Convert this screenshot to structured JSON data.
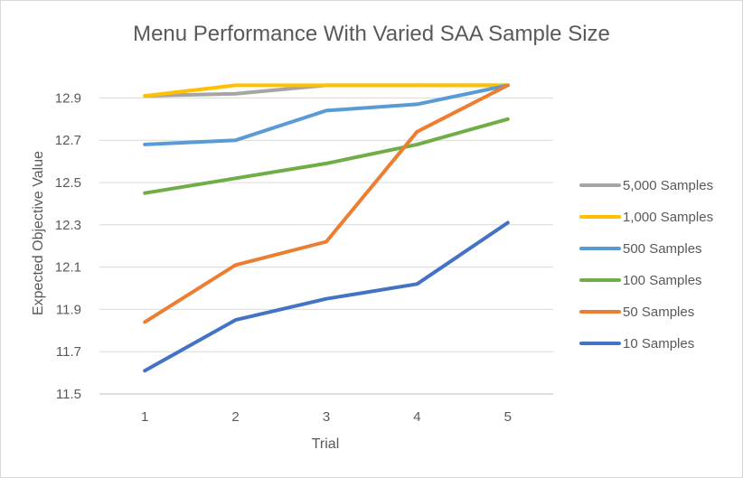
{
  "chart_data": {
    "type": "line",
    "title": "Menu Performance With Varied SAA Sample Size",
    "xlabel": "Trial",
    "ylabel": "Expected Objective Value",
    "x": [
      1,
      2,
      3,
      4,
      5
    ],
    "x_tick_labels": [
      "1",
      "2",
      "3",
      "4",
      "5"
    ],
    "ylim": [
      11.5,
      13.0
    ],
    "y_ticks": [
      11.5,
      11.7,
      11.9,
      12.1,
      12.3,
      12.5,
      12.7,
      12.9
    ],
    "y_tick_labels": [
      "11.5",
      "11.7",
      "11.9",
      "12.1",
      "12.3",
      "12.5",
      "12.7",
      "12.9"
    ],
    "grid": "horizontal",
    "legend_position": "right",
    "series": [
      {
        "name": "5,000 Samples",
        "color": "#a5a5a5",
        "values": [
          12.91,
          12.92,
          12.96,
          12.96,
          12.96
        ]
      },
      {
        "name": "1,000 Samples",
        "color": "#ffc000",
        "values": [
          12.91,
          12.96,
          12.96,
          12.96,
          12.96
        ]
      },
      {
        "name": "500 Samples",
        "color": "#5b9bd5",
        "values": [
          12.68,
          12.7,
          12.84,
          12.87,
          12.96
        ]
      },
      {
        "name": "100 Samples",
        "color": "#70ad47",
        "values": [
          12.45,
          12.52,
          12.59,
          12.68,
          12.8
        ]
      },
      {
        "name": "50 Samples",
        "color": "#ed7d31",
        "values": [
          11.84,
          12.11,
          12.22,
          12.74,
          12.96
        ]
      },
      {
        "name": "10 Samples",
        "color": "#4472c4",
        "values": [
          11.61,
          11.85,
          11.95,
          12.02,
          12.31
        ]
      }
    ]
  }
}
